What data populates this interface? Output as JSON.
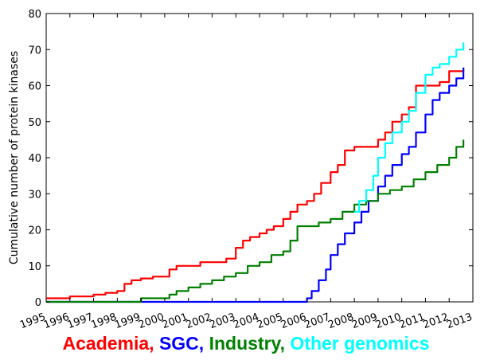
{
  "chart_data": {
    "type": "line",
    "ylabel": "Cumulative number of protein kinases",
    "xlim": [
      1995,
      2013
    ],
    "ylim": [
      0,
      80
    ],
    "x_ticks": [
      "1995",
      "1996",
      "1997",
      "1998",
      "1999",
      "2000",
      "2001",
      "2002",
      "2003",
      "2004",
      "2005",
      "2006",
      "2007",
      "2008",
      "2009",
      "2010",
      "2011",
      "2012",
      "2013"
    ],
    "y_ticks": [
      "0",
      "10",
      "20",
      "30",
      "40",
      "50",
      "60",
      "70",
      "80"
    ],
    "legend": {
      "placement": "bottom",
      "entries": [
        {
          "text": "Academia,",
          "color": "#ff0000"
        },
        {
          "text": "SGC,",
          "color": "#0000ff"
        },
        {
          "text": "Industry,",
          "color": "#008000"
        },
        {
          "text": "Other genomics",
          "color": "#00ffff"
        }
      ]
    },
    "series": [
      {
        "color": "#ff0000",
        "x": [
          1995.0,
          1996.0,
          1997.0,
          1997.5,
          1998.0,
          1998.3,
          1998.6,
          1999.0,
          1999.5,
          2000.0,
          2000.2,
          2000.5,
          2001.0,
          2001.5,
          2002.0,
          2002.3,
          2002.6,
          2003.0,
          2003.3,
          2003.6,
          2004.0,
          2004.3,
          2004.6,
          2005.0,
          2005.3,
          2005.6,
          2006.0,
          2006.3,
          2006.6,
          2007.0,
          2007.3,
          2007.6,
          2008.0,
          2008.3,
          2008.6,
          2009.0,
          2009.3,
          2009.6,
          2010.0,
          2010.3,
          2010.6,
          2011.0,
          2011.3,
          2011.6,
          2012.0,
          2012.3,
          2012.6
        ],
        "y": [
          1,
          1.5,
          2,
          2.5,
          3,
          5,
          6,
          6.5,
          7,
          7,
          9,
          10,
          10,
          11,
          11,
          11,
          12,
          15,
          17,
          18,
          19,
          20,
          21,
          23,
          25,
          27,
          28,
          30,
          33,
          36,
          38,
          42,
          43,
          43,
          43,
          45,
          47,
          50,
          52,
          54,
          60,
          60,
          60,
          61,
          64,
          64,
          65
        ]
      },
      {
        "color": "#0000ff",
        "x": [
          1995.0,
          2005.5,
          2006.0,
          2006.2,
          2006.5,
          2006.8,
          2007.0,
          2007.3,
          2007.6,
          2008.0,
          2008.3,
          2008.6,
          2009.0,
          2009.3,
          2009.6,
          2010.0,
          2010.3,
          2010.6,
          2011.0,
          2011.3,
          2011.6,
          2012.0,
          2012.3,
          2012.6
        ],
        "y": [
          0,
          0,
          1,
          3,
          6,
          9,
          13,
          16,
          19,
          22,
          25,
          28,
          32,
          35,
          38,
          41,
          43,
          47,
          52,
          56,
          58,
          60,
          62,
          65
        ]
      },
      {
        "color": "#008000",
        "x": [
          1995.0,
          1998.5,
          1999.0,
          1999.5,
          2000.0,
          2000.2,
          2000.5,
          2001.0,
          2001.5,
          2002.0,
          2002.5,
          2003.0,
          2003.5,
          2004.0,
          2004.5,
          2005.0,
          2005.3,
          2005.6,
          2006.0,
          2006.5,
          2007.0,
          2007.5,
          2008.0,
          2008.5,
          2009.0,
          2009.5,
          2010.0,
          2010.5,
          2011.0,
          2011.5,
          2012.0,
          2012.3,
          2012.6
        ],
        "y": [
          0,
          0,
          1,
          1,
          1,
          2,
          3,
          4,
          5,
          6,
          7,
          8,
          10,
          11,
          13,
          14,
          17,
          21,
          21,
          22,
          23,
          25,
          27,
          28,
          30,
          31,
          32,
          34,
          36,
          38,
          40,
          43,
          45
        ]
      },
      {
        "color": "#00ffff",
        "x": [
          2008.0,
          2008.2,
          2008.5,
          2008.8,
          2009.0,
          2009.3,
          2009.6,
          2010.0,
          2010.3,
          2010.6,
          2011.0,
          2011.3,
          2011.6,
          2012.0,
          2012.3,
          2012.6
        ],
        "y": [
          25,
          28,
          31,
          35,
          40,
          44,
          47,
          50,
          53,
          58,
          63,
          65,
          66,
          68,
          70,
          72
        ]
      }
    ]
  }
}
